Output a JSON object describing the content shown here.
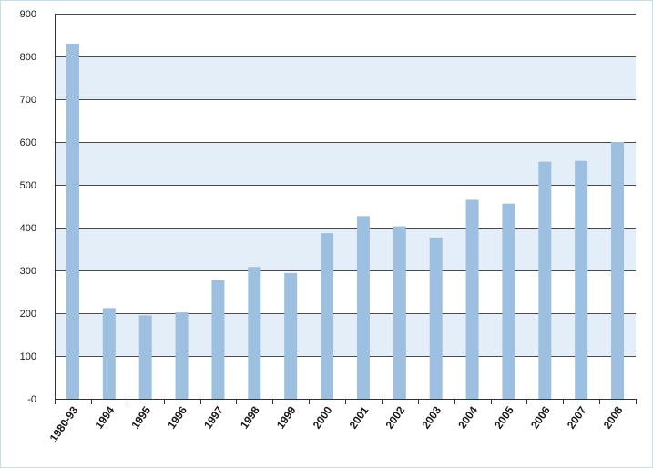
{
  "chart_data": {
    "type": "bar",
    "title": "",
    "xlabel": "",
    "ylabel": "",
    "categories": [
      "1980-93",
      "1994",
      "1995",
      "1996",
      "1997",
      "1998",
      "1999",
      "2000",
      "2001",
      "2002",
      "2003",
      "2004",
      "2005",
      "2006",
      "2007",
      "2008"
    ],
    "values": [
      830,
      212,
      195,
      202,
      277,
      308,
      294,
      387,
      427,
      403,
      377,
      465,
      456,
      554,
      556,
      600
    ],
    "ylim": [
      0,
      900
    ],
    "yticks": [
      0,
      100,
      200,
      300,
      400,
      500,
      600,
      700,
      800,
      900
    ],
    "ytick_labels": [
      "-0",
      "100",
      "200",
      "300",
      "400",
      "500",
      "600",
      "700",
      "800",
      "900"
    ],
    "grid": true,
    "banded_background": true,
    "colors": {
      "bar": "#9dc0e0",
      "band": "#e4eef8",
      "gridline": "#4a4a4a",
      "axis": "#333333",
      "border": "#c9dde6"
    }
  }
}
